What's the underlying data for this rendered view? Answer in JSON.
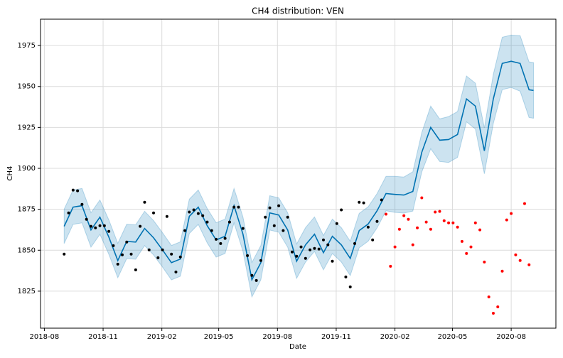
{
  "chart_data": {
    "type": "line",
    "title": "CH4 distribution: VEN",
    "x_label": "Date",
    "y_label": "CH4",
    "xlim": [
      "2018-07-26",
      "2020-10-10"
    ],
    "xticks": [
      "2018-08",
      "2018-11",
      "2019-02",
      "2019-05",
      "2019-08",
      "2019-11",
      "2020-02",
      "2020-05",
      "2020-08"
    ],
    "ylim": [
      1802.4,
      1991.1
    ],
    "yticks": [
      1825,
      1850,
      1875,
      1900,
      1925,
      1950,
      1975
    ],
    "grid": true,
    "series": [
      {
        "kind": "band-line",
        "color": "#0072B2",
        "x": [
          "2018-09-01",
          "2018-09-15",
          "2018-09-29",
          "2018-10-13",
          "2018-10-27",
          "2018-11-10",
          "2018-11-24",
          "2018-12-08",
          "2018-12-22",
          "2019-01-05",
          "2019-01-19",
          "2019-02-02",
          "2019-02-16",
          "2019-03-02",
          "2019-03-16",
          "2019-03-30",
          "2019-04-13",
          "2019-04-27",
          "2019-05-11",
          "2019-05-25",
          "2019-06-08",
          "2019-06-22",
          "2019-07-06",
          "2019-07-20",
          "2019-08-03",
          "2019-08-17",
          "2019-08-31",
          "2019-09-14",
          "2019-09-28",
          "2019-10-12",
          "2019-10-26",
          "2019-11-09",
          "2019-11-23",
          "2019-12-07",
          "2019-12-21",
          "2020-01-04",
          "2020-01-18",
          "2020-02-01",
          "2020-02-15",
          "2020-02-29",
          "2020-03-14",
          "2020-03-28",
          "2020-04-11",
          "2020-04-25",
          "2020-05-09",
          "2020-05-23",
          "2020-06-06",
          "2020-06-20",
          "2020-07-04",
          "2020-07-18",
          "2020-08-01",
          "2020-08-15",
          "2020-08-29",
          "2020-09-05"
        ],
        "values": [
          1864.6,
          1876.3,
          1877.2,
          1862.4,
          1870.2,
          1858.0,
          1843.7,
          1855.4,
          1855.0,
          1863.3,
          1857.6,
          1850.2,
          1842.4,
          1844.6,
          1870.7,
          1876.3,
          1865.0,
          1856.3,
          1858.5,
          1877.2,
          1859.8,
          1832.0,
          1842.4,
          1872.8,
          1871.5,
          1862.4,
          1843.3,
          1853.3,
          1859.8,
          1848.5,
          1858.5,
          1853.3,
          1845.0,
          1862.0,
          1866.0,
          1874.1,
          1884.6,
          1884.1,
          1883.7,
          1885.9,
          1909.8,
          1925.0,
          1917.2,
          1917.6,
          1920.7,
          1942.4,
          1938.0,
          1910.7,
          1942.4,
          1964.1,
          1965.4,
          1964.1,
          1948.0,
          1947.6
        ],
        "lower": [
          1854.1,
          1865.8,
          1866.7,
          1851.9,
          1859.7,
          1847.5,
          1833.2,
          1844.9,
          1844.5,
          1852.8,
          1847.1,
          1839.7,
          1831.9,
          1834.1,
          1860.2,
          1865.8,
          1854.5,
          1845.8,
          1848.0,
          1866.7,
          1849.3,
          1821.5,
          1831.9,
          1862.3,
          1861.0,
          1851.9,
          1832.8,
          1842.8,
          1849.3,
          1838.0,
          1848.0,
          1842.8,
          1834.5,
          1851.5,
          1855.5,
          1863.6,
          1874.1,
          1873.1,
          1872.7,
          1873.9,
          1897.8,
          1912.0,
          1904.2,
          1903.6,
          1906.7,
          1928.4,
          1924.0,
          1896.7,
          1927.4,
          1948.1,
          1949.4,
          1947.1,
          1931.0,
          1930.6
        ],
        "upper": [
          1875.1,
          1886.8,
          1887.7,
          1872.9,
          1880.7,
          1868.5,
          1854.2,
          1865.9,
          1865.5,
          1873.8,
          1868.1,
          1860.7,
          1852.9,
          1855.1,
          1881.2,
          1886.8,
          1875.5,
          1866.8,
          1869.0,
          1887.7,
          1870.3,
          1842.5,
          1852.9,
          1883.3,
          1882.0,
          1872.9,
          1853.8,
          1863.8,
          1870.3,
          1859.0,
          1869.0,
          1863.8,
          1855.5,
          1872.5,
          1876.5,
          1884.6,
          1895.1,
          1895.1,
          1894.7,
          1897.9,
          1921.8,
          1938.0,
          1930.2,
          1931.6,
          1934.7,
          1956.4,
          1952.0,
          1924.7,
          1957.4,
          1980.1,
          1981.4,
          1981.1,
          1965.0,
          1964.6
        ]
      },
      {
        "kind": "points",
        "color": "#000000",
        "x": [
          "2018-09-01",
          "2018-09-08",
          "2018-09-15",
          "2018-09-22",
          "2018-09-29",
          "2018-10-06",
          "2018-10-13",
          "2018-10-20",
          "2018-10-27",
          "2018-11-03",
          "2018-11-10",
          "2018-11-17",
          "2018-11-24",
          "2018-12-01",
          "2018-12-08",
          "2018-12-15",
          "2018-12-22",
          "2018-12-29",
          "2019-01-05",
          "2019-01-12",
          "2019-01-19",
          "2019-01-26",
          "2019-02-02",
          "2019-02-09",
          "2019-02-16",
          "2019-02-23",
          "2019-03-02",
          "2019-03-09",
          "2019-03-16",
          "2019-03-23",
          "2019-03-30",
          "2019-04-06",
          "2019-04-13",
          "2019-04-20",
          "2019-04-27",
          "2019-05-04",
          "2019-05-11",
          "2019-05-18",
          "2019-05-25",
          "2019-06-01",
          "2019-06-08",
          "2019-06-15",
          "2019-06-22",
          "2019-06-29",
          "2019-07-06",
          "2019-07-13",
          "2019-07-20",
          "2019-07-27",
          "2019-08-03",
          "2019-08-10",
          "2019-08-17",
          "2019-08-24",
          "2019-08-31",
          "2019-09-07",
          "2019-09-14",
          "2019-09-21",
          "2019-09-28",
          "2019-10-05",
          "2019-10-12",
          "2019-10-19",
          "2019-10-26",
          "2019-11-02",
          "2019-11-09",
          "2019-11-16",
          "2019-11-23",
          "2019-11-30",
          "2019-12-07",
          "2019-12-14",
          "2019-12-21",
          "2019-12-28",
          "2020-01-04",
          "2020-01-11"
        ],
        "values": [
          1847.6,
          1872.8,
          1886.7,
          1886.3,
          1878.0,
          1868.9,
          1864.6,
          1863.7,
          1865.0,
          1865.0,
          1861.5,
          1852.8,
          1841.5,
          1847.2,
          1855.0,
          1847.6,
          1838.0,
          1864.6,
          1879.3,
          1850.2,
          1872.8,
          1845.4,
          1850.2,
          1870.6,
          1847.6,
          1836.7,
          1845.9,
          1862.0,
          1873.3,
          1874.6,
          1872.4,
          1871.1,
          1867.2,
          1862.0,
          1856.7,
          1854.1,
          1857.2,
          1867.2,
          1876.3,
          1876.3,
          1863.3,
          1846.7,
          1834.6,
          1831.5,
          1843.7,
          1870.2,
          1875.9,
          1865.0,
          1877.2,
          1862.0,
          1870.2,
          1848.9,
          1846.3,
          1852.0,
          1845.0,
          1850.2,
          1851.1,
          1850.7,
          1856.3,
          1853.3,
          1843.3,
          1866.3,
          1874.6,
          1833.7,
          1827.6,
          1854.1,
          1879.3,
          1878.9,
          1864.1,
          1856.3,
          1867.6,
          1880.7
        ]
      },
      {
        "kind": "points",
        "color": "#ff0000",
        "x": [
          "2020-01-18",
          "2020-01-25",
          "2020-02-01",
          "2020-02-08",
          "2020-02-15",
          "2020-02-22",
          "2020-02-29",
          "2020-03-07",
          "2020-03-14",
          "2020-03-21",
          "2020-03-28",
          "2020-04-04",
          "2020-04-11",
          "2020-04-18",
          "2020-04-25",
          "2020-05-02",
          "2020-05-09",
          "2020-05-16",
          "2020-05-23",
          "2020-05-30",
          "2020-06-06",
          "2020-06-13",
          "2020-06-20",
          "2020-06-27",
          "2020-07-04",
          "2020-07-11",
          "2020-07-18",
          "2020-07-25",
          "2020-08-01",
          "2020-08-08",
          "2020-08-15",
          "2020-08-22",
          "2020-08-29"
        ],
        "values": [
          1872.0,
          1840.2,
          1852.0,
          1862.8,
          1871.1,
          1868.9,
          1853.3,
          1863.7,
          1882.0,
          1867.2,
          1862.8,
          1873.3,
          1873.7,
          1868.0,
          1866.7,
          1866.7,
          1864.1,
          1855.4,
          1848.0,
          1852.0,
          1866.7,
          1862.4,
          1842.8,
          1821.5,
          1811.5,
          1815.4,
          1837.2,
          1868.5,
          1872.4,
          1847.2,
          1843.7,
          1878.5,
          1841.1
        ]
      }
    ]
  }
}
